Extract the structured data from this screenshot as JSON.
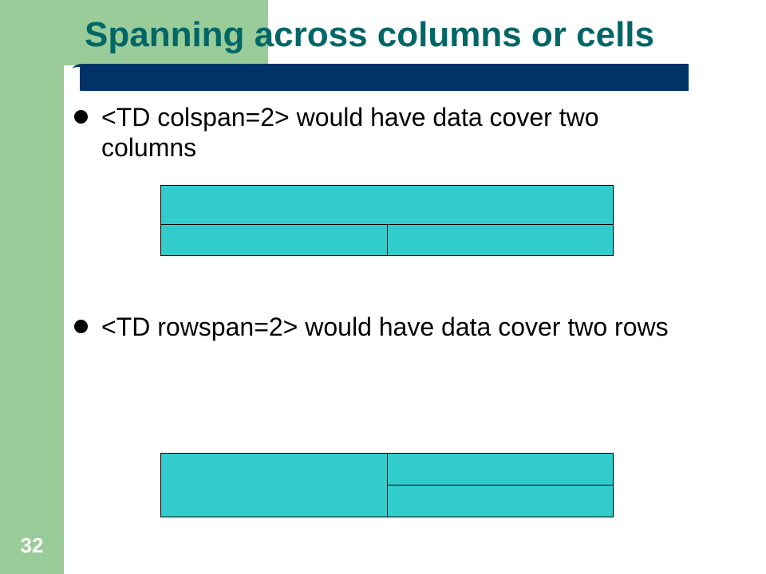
{
  "slide": {
    "title": "Spanning across columns or cells",
    "number": "32"
  },
  "bullets": [
    {
      "text": "<TD colspan=2> would have data cover two columns"
    },
    {
      "text": "<TD rowspan=2> would have data cover two rows"
    }
  ],
  "colors": {
    "accent_green": "#99cc99",
    "title_bar": "#003366",
    "title_text": "#006666",
    "cell_fill": "#33cccc"
  }
}
